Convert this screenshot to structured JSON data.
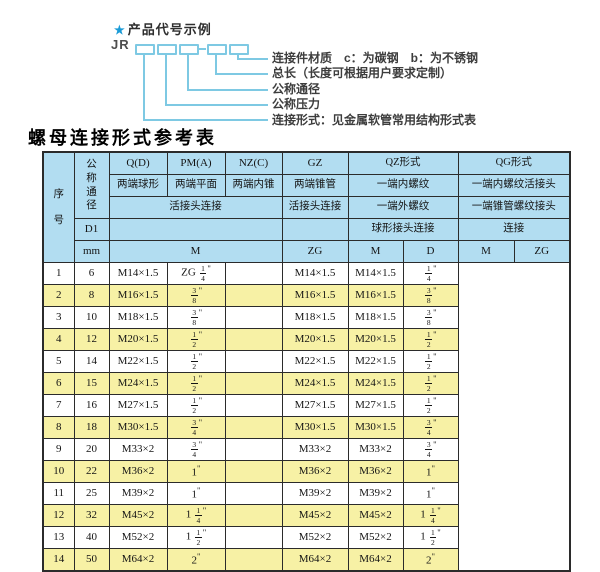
{
  "diagram": {
    "star": "★",
    "heading": "产品代号示例",
    "prefix": "JR",
    "labels": [
      "连接件材质　c：为碳钢　b：为不锈钢",
      "总长（长度可根据用户要求定制）",
      "公称通径",
      "公称压力",
      "连接形式：见金属软管常用结构形式表"
    ]
  },
  "title": "螺母连接形式参考表",
  "table": {
    "header": {
      "seq": "序号",
      "dn": "公称通径",
      "d1": "D1",
      "mm": "mm",
      "qd": "Q(D)",
      "pma": "PM(A)",
      "nzc": "NZ(C)",
      "gz": "GZ",
      "qz": "QZ形式",
      "qg": "QG形式",
      "qd_sub": "两端球形",
      "pma_sub": "两端平面",
      "nzc_sub": "两端内锥",
      "gz_sub": "两端锥管",
      "qz_sub": "一端内螺纹",
      "qg_sub": "一端内螺纹活接头",
      "union_conn": "活接头连接",
      "gz_conn": "活接头连接",
      "qz_sub2": "一端外螺纹",
      "qg_sub2": "一端锥管螺纹接头",
      "qz_conn": "球形接头连接",
      "qg_conn": "连接",
      "m": "M",
      "zg": "ZG",
      "qz_m": "M",
      "qz_d": "D",
      "qg_m": "M",
      "qg_zg": "ZG"
    },
    "rows": [
      [
        "1",
        "6",
        "M14×1.5",
        "ZG 1/4\"",
        "",
        "M14×1.5",
        "M14×1.5",
        "1/4\""
      ],
      [
        "2",
        "8",
        "M16×1.5",
        "3/8\"",
        "",
        "M16×1.5",
        "M16×1.5",
        "3/8\""
      ],
      [
        "3",
        "10",
        "M18×1.5",
        "3/8\"",
        "",
        "M18×1.5",
        "M18×1.5",
        "3/8\""
      ],
      [
        "4",
        "12",
        "M20×1.5",
        "1/2\"",
        "",
        "M20×1.5",
        "M20×1.5",
        "1/2\""
      ],
      [
        "5",
        "14",
        "M22×1.5",
        "1/2\"",
        "",
        "M22×1.5",
        "M22×1.5",
        "1/2\""
      ],
      [
        "6",
        "15",
        "M24×1.5",
        "1/2\"",
        "",
        "M24×1.5",
        "M24×1.5",
        "1/2\""
      ],
      [
        "7",
        "16",
        "M27×1.5",
        "1/2\"",
        "",
        "M27×1.5",
        "M27×1.5",
        "1/2\""
      ],
      [
        "8",
        "18",
        "M30×1.5",
        "3/4\"",
        "",
        "M30×1.5",
        "M30×1.5",
        "3/4\""
      ],
      [
        "9",
        "20",
        "M33×2",
        "3/4\"",
        "",
        "M33×2",
        "M33×2",
        "3/4\""
      ],
      [
        "10",
        "22",
        "M36×2",
        "1\"",
        "",
        "M36×2",
        "M36×2",
        "1\""
      ],
      [
        "11",
        "25",
        "M39×2",
        "1\"",
        "",
        "M39×2",
        "M39×2",
        "1\""
      ],
      [
        "12",
        "32",
        "M45×2",
        "1 1/4\"",
        "",
        "M45×2",
        "M45×2",
        "1 1/4\""
      ],
      [
        "13",
        "40",
        "M52×2",
        "1 1/2\"",
        "",
        "M52×2",
        "M52×2",
        "1 1/2\""
      ],
      [
        "14",
        "50",
        "M64×2",
        "2\"",
        "",
        "M64×2",
        "M64×2",
        "2\""
      ]
    ]
  },
  "colors": {
    "header_blue": "#b2ddf1",
    "row_yellow": "#f7f1a5",
    "border": "#2b2b2b",
    "line_blue": "#7ec9e3",
    "star_blue": "#1a9bd7",
    "text": "#141414",
    "label_text": "#3d3d3d"
  }
}
